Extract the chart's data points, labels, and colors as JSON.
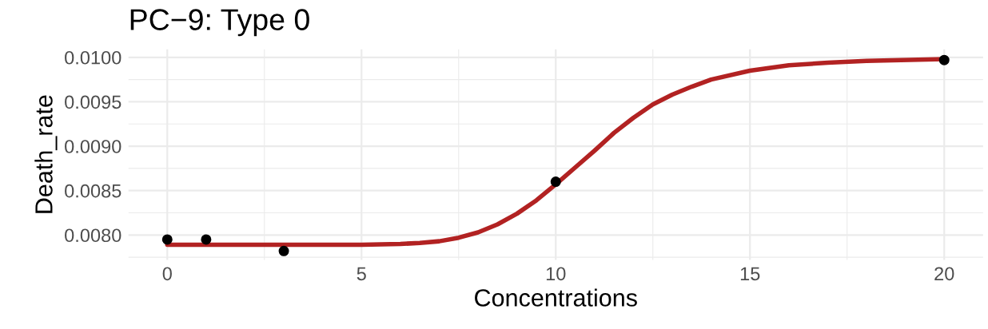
{
  "chart_data": {
    "type": "scatter",
    "title": "PC−9: Type 0",
    "xlabel": "Concentrations",
    "ylabel": "Death_rate",
    "xlim": [
      -1,
      21
    ],
    "ylim": [
      0.00772,
      0.01009
    ],
    "xticks": [
      0,
      5,
      10,
      15,
      20
    ],
    "yticks": [
      {
        "value": 0.008,
        "label": "0.0080"
      },
      {
        "value": 0.0085,
        "label": "0.0085"
      },
      {
        "value": 0.009,
        "label": "0.0090"
      },
      {
        "value": 0.0095,
        "label": "0.0095"
      },
      {
        "value": 0.01,
        "label": "0.0100"
      }
    ],
    "grid": true,
    "legend": false,
    "series": [
      {
        "type": "line",
        "color": "#b22222",
        "marker": "none",
        "x": [
          0,
          2,
          4,
          5,
          6,
          6.5,
          7,
          7.5,
          8,
          8.5,
          9,
          9.5,
          10,
          10.5,
          11,
          11.5,
          12,
          12.5,
          13,
          13.5,
          14,
          15,
          16,
          17,
          18,
          20
        ],
        "values": [
          0.00789,
          0.00789,
          0.00789,
          0.00789,
          0.0079,
          0.00791,
          0.00793,
          0.00797,
          0.00803,
          0.00812,
          0.00824,
          0.00839,
          0.00857,
          0.00876,
          0.00895,
          0.00915,
          0.00932,
          0.00947,
          0.00958,
          0.00967,
          0.00975,
          0.00985,
          0.00991,
          0.00994,
          0.00996,
          0.00998
        ]
      },
      {
        "color": "#000000",
        "marker": "circle",
        "x": [
          0,
          1,
          3,
          10,
          20
        ],
        "values": [
          0.00795,
          0.00795,
          0.00782,
          0.0086,
          0.00997
        ]
      }
    ]
  }
}
